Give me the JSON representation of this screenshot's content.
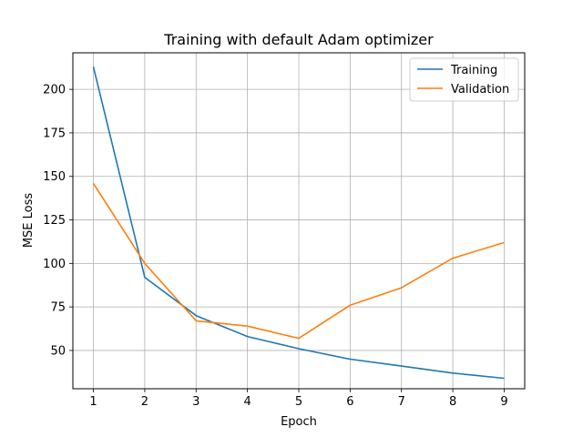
{
  "chart_data": {
    "type": "line",
    "title": "Training with default Adam optimizer",
    "xlabel": "Epoch",
    "ylabel": "MSE Loss",
    "x": [
      1,
      2,
      3,
      4,
      5,
      6,
      7,
      8,
      9
    ],
    "xlim": [
      0.6,
      9.4
    ],
    "ylim": [
      28,
      221
    ],
    "xticks": [
      1,
      2,
      3,
      4,
      5,
      6,
      7,
      8,
      9
    ],
    "yticks": [
      50,
      75,
      100,
      125,
      150,
      175,
      200
    ],
    "grid": true,
    "legend_position": "top-right",
    "series": [
      {
        "name": "Training",
        "color": "#1f77b4",
        "values": [
          213,
          92,
          70,
          58,
          51,
          45,
          41,
          37,
          34
        ]
      },
      {
        "name": "Validation",
        "color": "#ff7f0e",
        "values": [
          146,
          100,
          67,
          64,
          57,
          76,
          86,
          103,
          112
        ]
      }
    ]
  }
}
